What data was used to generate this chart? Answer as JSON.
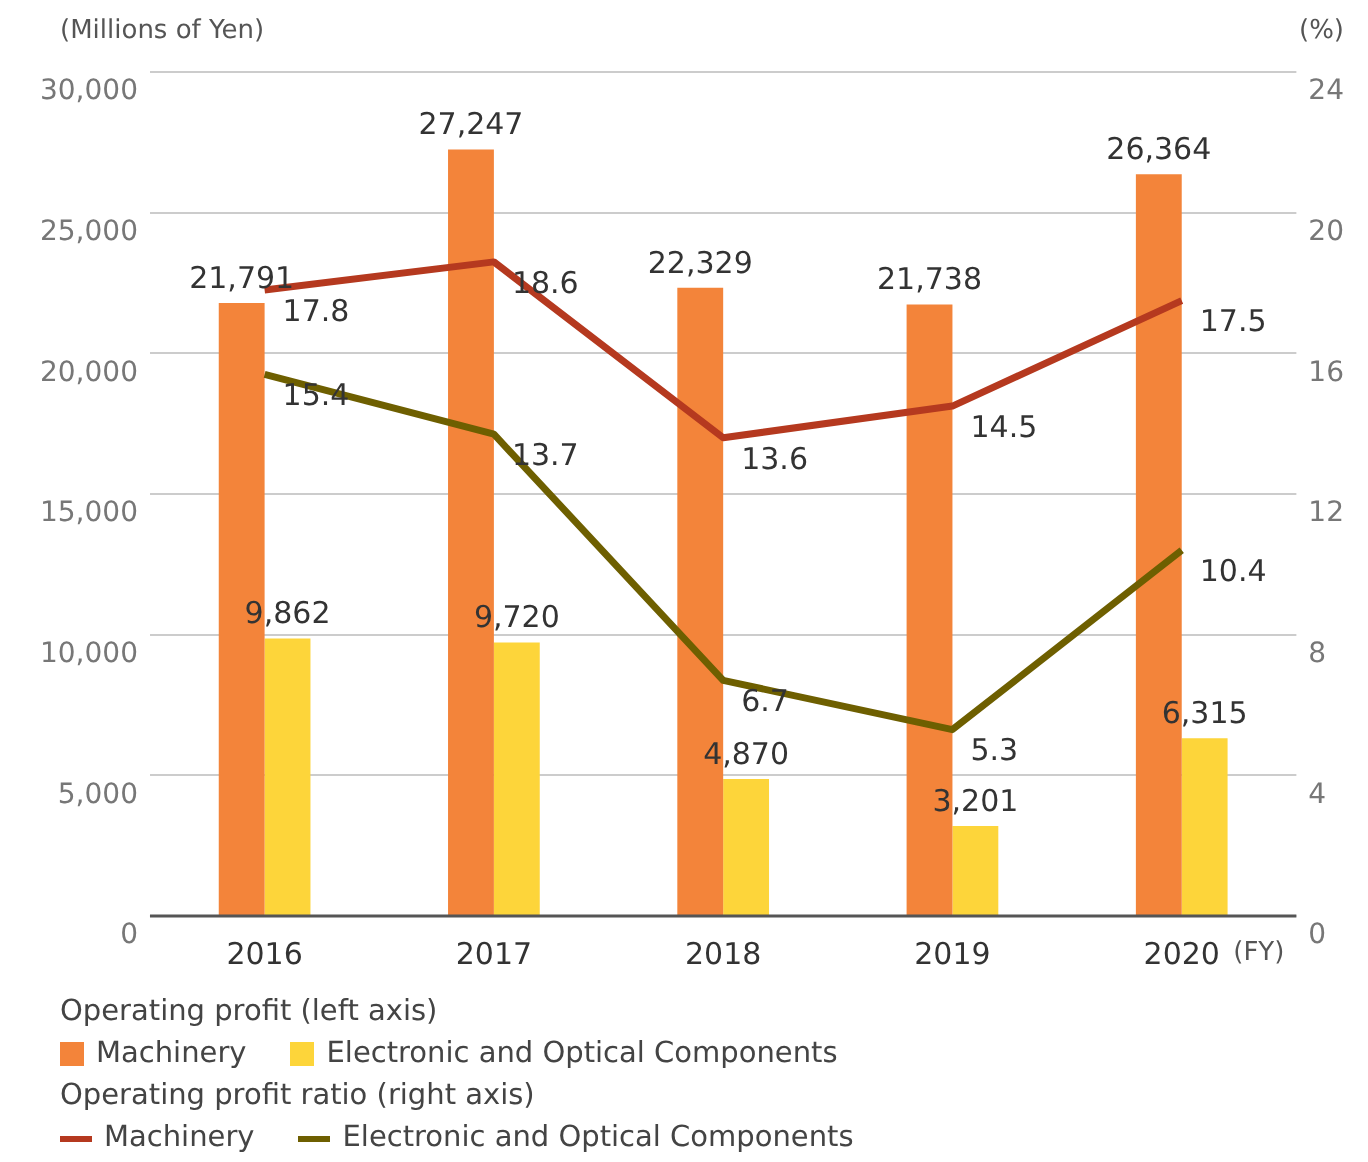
{
  "chart_data": {
    "type": "bar",
    "ylabel": "(Millions of Yen)",
    "y2label": "(%)",
    "xlabel": "(FY)",
    "categories": [
      "2016",
      "2017",
      "2018",
      "2019",
      "2020"
    ],
    "series": [
      {
        "name": "Machinery",
        "color": "#f3843a",
        "values": [
          21791,
          27247,
          22329,
          21738,
          26364
        ],
        "value_labels": [
          "21,791",
          "27,247",
          "22,329",
          "21,738",
          "26,364"
        ]
      },
      {
        "name": "Electronic and Optical Components",
        "color": "#fdd53a",
        "values": [
          9862,
          9720,
          4870,
          3201,
          6315
        ],
        "value_labels": [
          "9,862",
          "9,720",
          "4,870",
          "3,201",
          "6,315"
        ]
      },
      {
        "name": "Machinery",
        "type": "line",
        "axis": "y2",
        "color": "#b5391f",
        "values": [
          17.8,
          18.6,
          13.6,
          14.5,
          17.5
        ]
      },
      {
        "name": "Electronic and Optical Components",
        "type": "line",
        "axis": "y2",
        "color": "#6e5f00",
        "values": [
          15.4,
          13.7,
          6.7,
          5.3,
          10.4
        ]
      }
    ],
    "ylim": [
      0,
      30000
    ],
    "yticks": [
      0,
      {
        "value": 5000,
        "label": "5,000"
      },
      {
        "value": 10000,
        "label": "10,000"
      },
      {
        "value": 15000,
        "label": "15,000"
      },
      {
        "value": 20000,
        "label": "20,000"
      },
      {
        "value": 25000,
        "label": "25,000"
      },
      {
        "value": 30000,
        "label": "30,000"
      }
    ],
    "y2lim": [
      0,
      24
    ],
    "y2ticks": [
      0,
      4,
      8,
      12,
      16,
      20,
      24
    ],
    "grid": "y",
    "data_labels": true,
    "marker": "none",
    "line_style": "solid",
    "legend": "bottom",
    "annotations": [
      "Operating profit (left axis)",
      "Operating profit ratio (right axis)"
    ]
  }
}
